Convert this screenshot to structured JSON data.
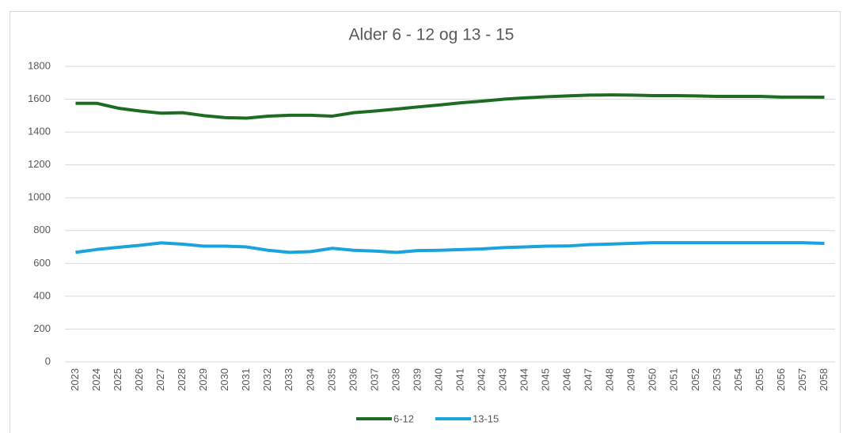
{
  "chart_data": {
    "type": "line",
    "title": "Alder 6 - 12 og 13 - 15",
    "categories": [
      "2023",
      "2024",
      "2025",
      "2026",
      "2027",
      "2028",
      "2029",
      "2030",
      "2031",
      "2032",
      "2033",
      "2034",
      "2035",
      "2036",
      "2037",
      "2038",
      "2039",
      "2040",
      "2041",
      "2042",
      "2043",
      "2044",
      "2045",
      "2046",
      "2047",
      "2048",
      "2049",
      "2050",
      "2051",
      "2052",
      "2053",
      "2054",
      "2055",
      "2056",
      "2057",
      "2058"
    ],
    "series": [
      {
        "name": "6-12",
        "color": "#1e6b24",
        "values": [
          1575,
          1575,
          1545,
          1528,
          1515,
          1518,
          1500,
          1488,
          1485,
          1497,
          1502,
          1502,
          1497,
          1518,
          1528,
          1540,
          1553,
          1565,
          1578,
          1588,
          1600,
          1608,
          1615,
          1620,
          1625,
          1626,
          1625,
          1622,
          1622,
          1620,
          1617,
          1617,
          1617,
          1613,
          1613,
          1612
        ]
      },
      {
        "name": "13-15",
        "color": "#1aa3dc",
        "values": [
          667,
          685,
          698,
          710,
          725,
          717,
          705,
          705,
          700,
          680,
          667,
          672,
          692,
          680,
          675,
          667,
          678,
          680,
          684,
          688,
          696,
          700,
          705,
          706,
          714,
          718,
          722,
          726,
          726,
          726,
          726,
          726,
          726,
          726,
          726,
          722
        ]
      }
    ],
    "ylim": [
      0,
      1800
    ],
    "yticks": [
      0,
      200,
      400,
      600,
      800,
      1000,
      1200,
      1400,
      1600,
      1800
    ],
    "grid": true,
    "legend": "bottom"
  }
}
